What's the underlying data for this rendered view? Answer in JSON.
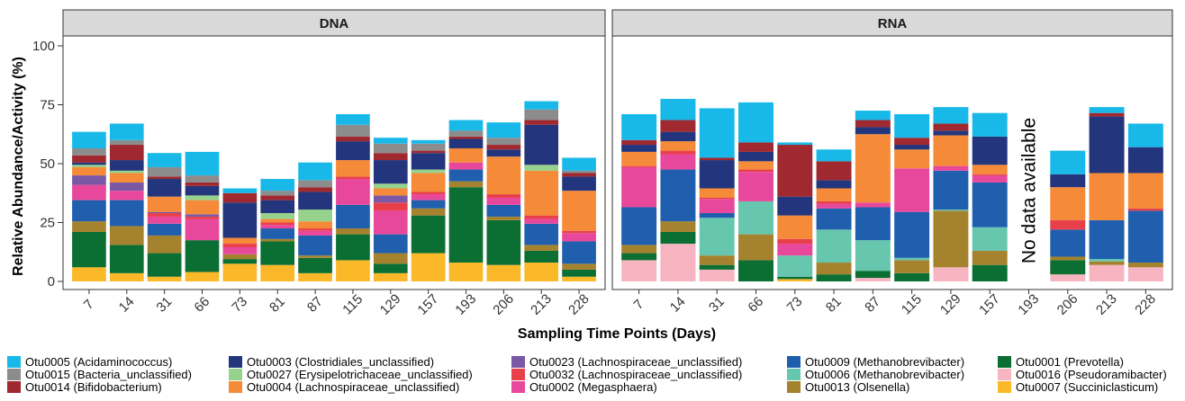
{
  "chart_data": {
    "type": "bar",
    "stacked": true,
    "ylabel": "Relative Abundance/Activity (%)",
    "xlabel": "Sampling Time Points (Days)",
    "ylim": [
      0,
      100
    ],
    "yticks": [
      0,
      25,
      50,
      75,
      100
    ],
    "grid": false,
    "legend_position": "bottom",
    "categories": [
      "7",
      "14",
      "31",
      "66",
      "73",
      "81",
      "87",
      "115",
      "129",
      "157",
      "193",
      "206",
      "213",
      "228"
    ],
    "series": [
      {
        "name": "Otu0007 (Succiniclasticum)",
        "color": "#FBB829"
      },
      {
        "name": "Otu0016 (Pseudoramibacter)",
        "color": "#F6B5C1"
      },
      {
        "name": "Otu0001 (Prevotella)",
        "color": "#0B6E32"
      },
      {
        "name": "Otu0013 (Olsenella)",
        "color": "#A5822D"
      },
      {
        "name": "Otu0006 (Methanobrevibacter)",
        "color": "#67C6AE"
      },
      {
        "name": "Otu0009 (Methanobrevibacter)",
        "color": "#1F5FAE"
      },
      {
        "name": "Otu0002 (Megasphaera)",
        "color": "#E8489B"
      },
      {
        "name": "Otu0032 (Lachnospiraceae_unclassified)",
        "color": "#E8404B"
      },
      {
        "name": "Otu0023 (Lachnospiraceae_unclassified)",
        "color": "#7B58A6"
      },
      {
        "name": "Otu0004 (Lachnospiraceae_unclassified)",
        "color": "#F58A38"
      },
      {
        "name": "Otu0027 (Erysipelotrichaceae_unclassified)",
        "color": "#96D28C"
      },
      {
        "name": "Otu0003 (Clostridiales_unclassified)",
        "color": "#23357C"
      },
      {
        "name": "Otu0014 (Bifidobacterium)",
        "color": "#A0282F"
      },
      {
        "name": "Otu0015 (Bacteria_unclassified)",
        "color": "#8C8C8C"
      },
      {
        "name": "Otu0005 (Acidaminococcus)",
        "color": "#18B9E8"
      }
    ],
    "legend_order": [
      "Otu0005 (Acidaminococcus)",
      "Otu0015 (Bacteria_unclassified)",
      "Otu0014 (Bifidobacterium)",
      "Otu0003 (Clostridiales_unclassified)",
      "Otu0027 (Erysipelotrichaceae_unclassified)",
      "Otu0004 (Lachnospiraceae_unclassified)",
      "Otu0023 (Lachnospiraceae_unclassified)",
      "Otu0032 (Lachnospiraceae_unclassified)",
      "Otu0002 (Megasphaera)",
      "Otu0009 (Methanobrevibacter)",
      "Otu0006 (Methanobrevibacter)",
      "Otu0013 (Olsenella)",
      "Otu0001 (Prevotella)",
      "Otu0016 (Pseudoramibacter)",
      "Otu0007 (Succiniclasticum)"
    ],
    "panels": [
      {
        "title": "DNA",
        "note": "",
        "bars": [
          [
            6,
            0,
            15,
            4.5,
            0,
            9,
            6.5,
            0,
            4,
            3.5,
            1,
            1,
            3,
            3,
            7
          ],
          [
            3.5,
            0,
            12,
            8,
            0,
            11,
            4,
            0,
            3.5,
            4,
            1,
            4.5,
            6.5,
            2,
            7
          ],
          [
            2,
            0,
            10,
            7.5,
            0,
            5,
            3,
            1.5,
            0.5,
            6.5,
            0,
            7.5,
            1,
            4,
            6
          ],
          [
            4,
            0,
            13.5,
            0,
            0,
            0,
            9,
            1,
            1,
            6,
            2,
            4,
            1.5,
            3,
            10
          ],
          [
            7.5,
            0,
            2,
            2,
            0,
            0,
            3,
            1.5,
            0,
            2.5,
            0,
            15,
            4,
            0,
            2
          ],
          [
            7,
            0,
            10,
            1,
            0,
            4.5,
            1.5,
            1,
            0,
            1.5,
            2.5,
            5.5,
            2,
            2,
            5
          ],
          [
            3.5,
            0,
            6.5,
            1,
            0,
            8.5,
            2,
            1,
            0,
            3,
            5,
            7.5,
            2,
            3,
            7.5
          ],
          [
            9,
            0,
            11,
            2.5,
            0,
            10,
            11,
            1,
            0,
            7,
            0,
            8,
            2,
            5,
            4.5
          ],
          [
            3.5,
            0,
            4,
            4.5,
            0,
            8,
            10,
            3.5,
            3,
            3,
            2,
            10,
            3,
            4,
            2.5
          ],
          [
            12,
            0,
            16,
            3,
            0,
            3.5,
            2.5,
            1,
            0,
            8,
            1.5,
            7,
            1,
            3,
            1.5
          ],
          [
            8,
            0,
            32,
            2.5,
            0,
            5,
            3,
            0,
            0,
            6,
            0,
            4,
            1,
            2.5,
            4.5
          ],
          [
            7,
            0,
            19,
            1.5,
            0,
            5,
            3,
            1.5,
            0,
            16,
            0,
            3,
            2,
            3,
            6.5
          ],
          [
            8,
            0,
            5,
            2.5,
            0,
            9,
            2,
            1.5,
            0,
            19,
            2.5,
            17,
            2,
            4.5,
            3.5
          ],
          [
            2,
            0,
            3,
            2.5,
            0,
            9.5,
            3.5,
            1,
            0,
            17,
            0,
            6,
            1.5,
            1,
            5.5
          ]
        ]
      },
      {
        "title": "RNA",
        "note": "No data available",
        "bars": [
          [
            0,
            9,
            3,
            3.5,
            0,
            16,
            17,
            0.5,
            0,
            6,
            0,
            3,
            2,
            0,
            11
          ],
          [
            0,
            16,
            5,
            4.5,
            0,
            22,
            6.5,
            1.5,
            0,
            4,
            0,
            4,
            5,
            0,
            9
          ],
          [
            0,
            5,
            2,
            4,
            16,
            2,
            6,
            0.5,
            0,
            4,
            0,
            12,
            1,
            0,
            21
          ],
          [
            0,
            0,
            9,
            11,
            14,
            0,
            12.5,
            1,
            0,
            3.5,
            0,
            4,
            4,
            0,
            17
          ],
          [
            1,
            0,
            1,
            0,
            9,
            0,
            5,
            2,
            0,
            10,
            0,
            8,
            22,
            0,
            1
          ],
          [
            0,
            0,
            3,
            5,
            14,
            9,
            2,
            1,
            0,
            5.5,
            0,
            3.5,
            8,
            0,
            5
          ],
          [
            0,
            1.5,
            3,
            0,
            13,
            14,
            2,
            0,
            0,
            29,
            0,
            3,
            3,
            0,
            4
          ],
          [
            0,
            0,
            3.5,
            5.5,
            1,
            19.5,
            18.5,
            0,
            0,
            8,
            0,
            2,
            3,
            0,
            10
          ],
          [
            0,
            6,
            0,
            24,
            0.5,
            16.5,
            2,
            0,
            0,
            13,
            0,
            2,
            3,
            0,
            7
          ],
          [
            0,
            0,
            7,
            6,
            10,
            19,
            3,
            0.5,
            0,
            4,
            0,
            12,
            0,
            0,
            10
          ],
          [
            0,
            0,
            0,
            0,
            0,
            0,
            0,
            0,
            0,
            0,
            0,
            0,
            0,
            0,
            0
          ],
          [
            0,
            3,
            6,
            1.5,
            0,
            11.5,
            0,
            4,
            0,
            14,
            0,
            5.5,
            0,
            0,
            10
          ],
          [
            0,
            7,
            0,
            1.5,
            1,
            16.5,
            0,
            0,
            0,
            20,
            0,
            24,
            1.5,
            0,
            2.5
          ],
          [
            0,
            6,
            0,
            2,
            0,
            22,
            0,
            1,
            0,
            15,
            0,
            11,
            0,
            0,
            10
          ]
        ]
      }
    ]
  }
}
